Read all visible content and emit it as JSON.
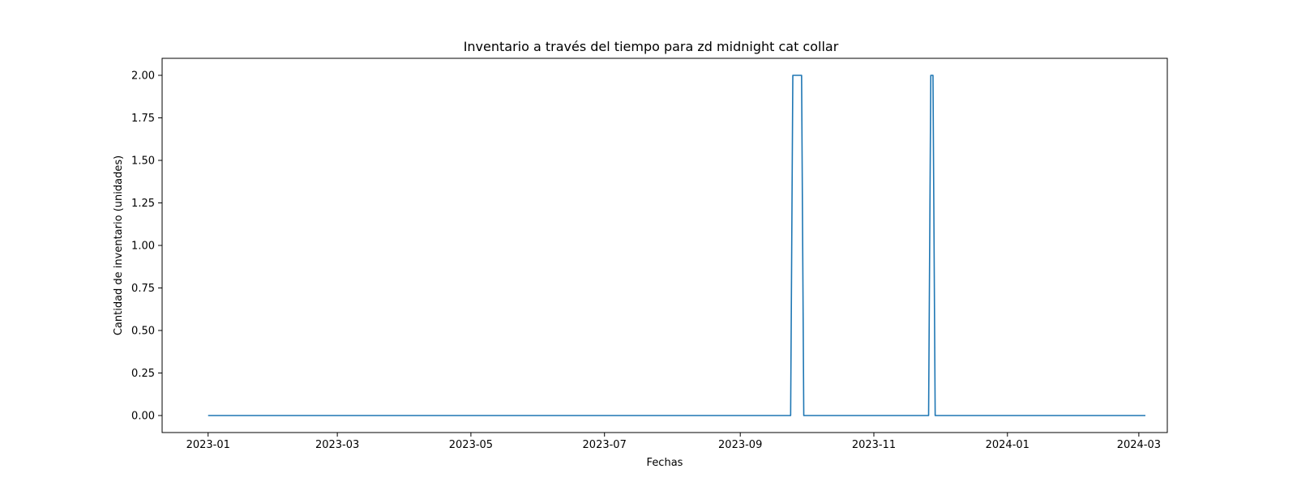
{
  "chart_data": {
    "type": "line",
    "title": "Inventario a través del tiempo para zd midnight cat collar",
    "xlabel": "Fechas",
    "ylabel": "Cantidad de inventario (unidades)",
    "xlim": [
      "2022-12-11",
      "2024-03-14"
    ],
    "ylim": [
      -0.1,
      2.1
    ],
    "grid": false,
    "x_ticks": [
      {
        "label": "2023-01",
        "date": "2023-01-01"
      },
      {
        "label": "2023-03",
        "date": "2023-03-01"
      },
      {
        "label": "2023-05",
        "date": "2023-05-01"
      },
      {
        "label": "2023-07",
        "date": "2023-07-01"
      },
      {
        "label": "2023-09",
        "date": "2023-09-01"
      },
      {
        "label": "2023-11",
        "date": "2023-11-01"
      },
      {
        "label": "2024-01",
        "date": "2024-01-01"
      },
      {
        "label": "2024-03",
        "date": "2024-03-01"
      }
    ],
    "y_ticks": [
      {
        "label": "0.00",
        "value": 0
      },
      {
        "label": "0.25",
        "value": 0.25
      },
      {
        "label": "0.50",
        "value": 0.5
      },
      {
        "label": "0.75",
        "value": 0.75
      },
      {
        "label": "1.00",
        "value": 1
      },
      {
        "label": "1.25",
        "value": 1.25
      },
      {
        "label": "1.50",
        "value": 1.5
      },
      {
        "label": "1.75",
        "value": 1.75
      },
      {
        "label": "2.00",
        "value": 2
      }
    ],
    "series": [
      {
        "color": "#1f77b4",
        "points": [
          {
            "x": "2023-01-01",
            "y": 0
          },
          {
            "x": "2023-09-24",
            "y": 0
          },
          {
            "x": "2023-09-25",
            "y": 2
          },
          {
            "x": "2023-09-29",
            "y": 2
          },
          {
            "x": "2023-09-30",
            "y": 0
          },
          {
            "x": "2023-11-26",
            "y": 0
          },
          {
            "x": "2023-11-27",
            "y": 2
          },
          {
            "x": "2023-11-28",
            "y": 2
          },
          {
            "x": "2023-11-29",
            "y": 0
          },
          {
            "x": "2024-03-04",
            "y": 0
          }
        ]
      }
    ]
  }
}
